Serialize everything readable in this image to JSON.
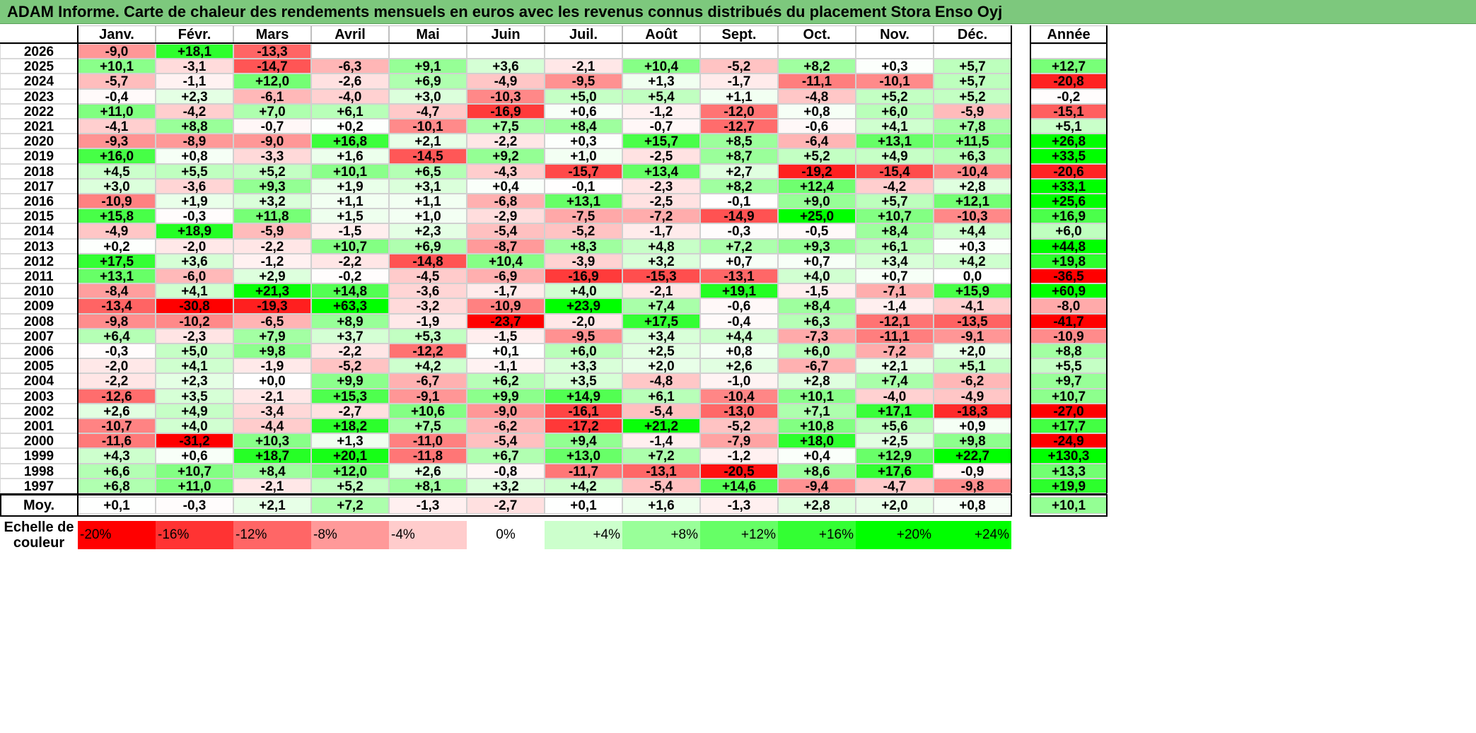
{
  "title": "ADAM Informe. Carte de chaleur des rendements mensuels en euros avec les revenus connus distribués du placement Stora Enso Oyj",
  "colors": {
    "title_bg": "#7dc87d",
    "neg_strong": "#ff0000",
    "pos_strong": "#00ff00",
    "neutral": "#ffffff"
  },
  "chart_data": {
    "type": "heatmap",
    "months": [
      "Janv.",
      "Févr.",
      "Mars",
      "Avril",
      "Mai",
      "Juin",
      "Juil.",
      "Août",
      "Sept.",
      "Oct.",
      "Nov.",
      "Déc."
    ],
    "year_header": "Année",
    "avg_label": "Moy.",
    "rows": [
      {
        "year": "2026",
        "values": [
          "-9,0",
          "+18,1",
          "-13,3",
          "",
          "",
          "",
          "",
          "",
          "",
          "",
          "",
          ""
        ],
        "annual": ""
      },
      {
        "year": "2025",
        "values": [
          "+10,1",
          "-3,1",
          "-14,7",
          "-6,3",
          "+9,1",
          "+3,6",
          "-2,1",
          "+10,4",
          "-5,2",
          "+8,2",
          "+0,3",
          "+5,7"
        ],
        "annual": "+12,7"
      },
      {
        "year": "2024",
        "values": [
          "-5,7",
          "-1,1",
          "+12,0",
          "-2,6",
          "+6,9",
          "-4,9",
          "-9,5",
          "+1,3",
          "-1,7",
          "-11,1",
          "-10,1",
          "+5,7"
        ],
        "annual": "-20,8"
      },
      {
        "year": "2023",
        "values": [
          "-0,4",
          "+2,3",
          "-6,1",
          "-4,0",
          "+3,0",
          "-10,3",
          "+5,0",
          "+5,4",
          "+1,1",
          "-4,8",
          "+5,2",
          "+5,2"
        ],
        "annual": "-0,2"
      },
      {
        "year": "2022",
        "values": [
          "+11,0",
          "-4,2",
          "+7,0",
          "+6,1",
          "-4,7",
          "-16,9",
          "+0,6",
          "-1,2",
          "-12,0",
          "+0,8",
          "+6,0",
          "-5,9"
        ],
        "annual": "-15,1"
      },
      {
        "year": "2021",
        "values": [
          "-4,1",
          "+8,8",
          "-0,7",
          "+0,2",
          "-10,1",
          "+7,5",
          "+8,4",
          "-0,7",
          "-12,7",
          "-0,6",
          "+4,1",
          "+7,8"
        ],
        "annual": "+5,1"
      },
      {
        "year": "2020",
        "values": [
          "-9,3",
          "-8,9",
          "-9,0",
          "+16,8",
          "+2,1",
          "-2,2",
          "+0,3",
          "+15,7",
          "+8,5",
          "-6,4",
          "+13,1",
          "+11,5"
        ],
        "annual": "+26,8"
      },
      {
        "year": "2019",
        "values": [
          "+16,0",
          "+0,8",
          "-3,3",
          "+1,6",
          "-14,5",
          "+9,2",
          "+1,0",
          "-2,5",
          "+8,7",
          "+5,2",
          "+4,9",
          "+6,3"
        ],
        "annual": "+33,5"
      },
      {
        "year": "2018",
        "values": [
          "+4,5",
          "+5,5",
          "+5,2",
          "+10,1",
          "+6,5",
          "-4,3",
          "-15,7",
          "+13,4",
          "+2,7",
          "-19,2",
          "-15,4",
          "-10,4"
        ],
        "annual": "-20,6"
      },
      {
        "year": "2017",
        "values": [
          "+3,0",
          "-3,6",
          "+9,3",
          "+1,9",
          "+3,1",
          "+0,4",
          "-0,1",
          "-2,3",
          "+8,2",
          "+12,4",
          "-4,2",
          "+2,8"
        ],
        "annual": "+33,1"
      },
      {
        "year": "2016",
        "values": [
          "-10,9",
          "+1,9",
          "+3,2",
          "+1,1",
          "+1,1",
          "-6,8",
          "+13,1",
          "-2,5",
          "-0,1",
          "+9,0",
          "+5,7",
          "+12,1"
        ],
        "annual": "+25,6"
      },
      {
        "year": "2015",
        "values": [
          "+15,8",
          "-0,3",
          "+11,8",
          "+1,5",
          "+1,0",
          "-2,9",
          "-7,5",
          "-7,2",
          "-14,9",
          "+25,0",
          "+10,7",
          "-10,3"
        ],
        "annual": "+16,9"
      },
      {
        "year": "2014",
        "values": [
          "-4,9",
          "+18,9",
          "-5,9",
          "-1,5",
          "+2,3",
          "-5,4",
          "-5,2",
          "-1,7",
          "-0,3",
          "-0,5",
          "+8,4",
          "+4,4"
        ],
        "annual": "+6,0"
      },
      {
        "year": "2013",
        "values": [
          "+0,2",
          "-2,0",
          "-2,2",
          "+10,7",
          "+6,9",
          "-8,7",
          "+8,3",
          "+4,8",
          "+7,2",
          "+9,3",
          "+6,1",
          "+0,3"
        ],
        "annual": "+44,8"
      },
      {
        "year": "2012",
        "values": [
          "+17,5",
          "+3,6",
          "-1,2",
          "-2,2",
          "-14,8",
          "+10,4",
          "-3,9",
          "+3,2",
          "+0,7",
          "+0,7",
          "+3,4",
          "+4,2"
        ],
        "annual": "+19,8"
      },
      {
        "year": "2011",
        "values": [
          "+13,1",
          "-6,0",
          "+2,9",
          "-0,2",
          "-4,5",
          "-6,9",
          "-16,9",
          "-15,3",
          "-13,1",
          "+4,0",
          "+0,7",
          "0,0"
        ],
        "annual": "-36,5"
      },
      {
        "year": "2010",
        "values": [
          "-8,4",
          "+4,1",
          "+21,3",
          "+14,8",
          "-3,6",
          "-1,7",
          "+4,0",
          "-2,1",
          "+19,1",
          "-1,5",
          "-7,1",
          "+15,9"
        ],
        "annual": "+60,9"
      },
      {
        "year": "2009",
        "values": [
          "-13,4",
          "-30,8",
          "-19,3",
          "+63,3",
          "-3,2",
          "-10,9",
          "+23,9",
          "+7,4",
          "-0,6",
          "+8,4",
          "-1,4",
          "-4,1"
        ],
        "annual": "-8,0"
      },
      {
        "year": "2008",
        "values": [
          "-9,8",
          "-10,2",
          "-6,5",
          "+8,9",
          "-1,9",
          "-23,7",
          "-2,0",
          "+17,5",
          "-0,4",
          "+6,3",
          "-12,1",
          "-13,5"
        ],
        "annual": "-41,7"
      },
      {
        "year": "2007",
        "values": [
          "+6,4",
          "-2,3",
          "+7,9",
          "+3,7",
          "+5,3",
          "-1,5",
          "-9,5",
          "+3,4",
          "+4,4",
          "-7,3",
          "-11,1",
          "-9,1"
        ],
        "annual": "-10,9"
      },
      {
        "year": "2006",
        "values": [
          "-0,3",
          "+5,0",
          "+9,8",
          "-2,2",
          "-12,2",
          "+0,1",
          "+6,0",
          "+2,5",
          "+0,8",
          "+6,0",
          "-7,2",
          "+2,0"
        ],
        "annual": "+8,8"
      },
      {
        "year": "2005",
        "values": [
          "-2,0",
          "+4,1",
          "-1,9",
          "-5,2",
          "+4,2",
          "-1,1",
          "+3,3",
          "+2,0",
          "+2,6",
          "-6,7",
          "+2,1",
          "+5,1"
        ],
        "annual": "+5,5"
      },
      {
        "year": "2004",
        "values": [
          "-2,2",
          "+2,3",
          "+0,0",
          "+9,9",
          "-6,7",
          "+6,2",
          "+3,5",
          "-4,8",
          "-1,0",
          "+2,8",
          "+7,4",
          "-6,2"
        ],
        "annual": "+9,7"
      },
      {
        "year": "2003",
        "values": [
          "-12,6",
          "+3,5",
          "-2,1",
          "+15,3",
          "-9,1",
          "+9,9",
          "+14,9",
          "+6,1",
          "-10,4",
          "+10,1",
          "-4,0",
          "-4,9"
        ],
        "annual": "+10,7"
      },
      {
        "year": "2002",
        "values": [
          "+2,6",
          "+4,9",
          "-3,4",
          "-2,7",
          "+10,6",
          "-9,0",
          "-16,1",
          "-5,4",
          "-13,0",
          "+7,1",
          "+17,1",
          "-18,3"
        ],
        "annual": "-27,0"
      },
      {
        "year": "2001",
        "values": [
          "-10,7",
          "+4,0",
          "-4,4",
          "+18,2",
          "+7,5",
          "-6,2",
          "-17,2",
          "+21,2",
          "-5,2",
          "+10,8",
          "+5,6",
          "+0,9"
        ],
        "annual": "+17,7"
      },
      {
        "year": "2000",
        "values": [
          "-11,6",
          "-31,2",
          "+10,3",
          "+1,3",
          "-11,0",
          "-5,4",
          "+9,4",
          "-1,4",
          "-7,9",
          "+18,0",
          "+2,5",
          "+9,8"
        ],
        "annual": "-24,9"
      },
      {
        "year": "1999",
        "values": [
          "+4,3",
          "+0,6",
          "+18,7",
          "+20,1",
          "-11,8",
          "+6,7",
          "+13,0",
          "+7,2",
          "-1,2",
          "+0,4",
          "+12,9",
          "+22,7"
        ],
        "annual": "+130,3"
      },
      {
        "year": "1998",
        "values": [
          "+6,6",
          "+10,7",
          "+8,4",
          "+12,0",
          "+2,6",
          "-0,8",
          "-11,7",
          "-13,1",
          "-20,5",
          "+8,6",
          "+17,6",
          "-0,9"
        ],
        "annual": "+13,3"
      },
      {
        "year": "1997",
        "values": [
          "+6,8",
          "+11,0",
          "-2,1",
          "+5,2",
          "+8,1",
          "+3,2",
          "+4,2",
          "-5,4",
          "+14,6",
          "-9,4",
          "-4,7",
          "-9,8"
        ],
        "annual": "+19,9"
      }
    ],
    "averages": {
      "values": [
        "+0,1",
        "-0,3",
        "+2,1",
        "+7,2",
        "-1,3",
        "-2,7",
        "+0,1",
        "+1,6",
        "-1,3",
        "+2,8",
        "+2,0",
        "+0,8"
      ],
      "annual": "+10,1"
    },
    "scale": {
      "label_line1": "Echelle de",
      "label_line2": "couleur",
      "items": [
        "-20%",
        "-16%",
        "-12%",
        "-8%",
        "-4%",
        "0%",
        "+4%",
        "+8%",
        "+12%",
        "+16%",
        "+20%",
        "+24%"
      ],
      "levels": [
        -20,
        -16,
        -12,
        -8,
        -4,
        0,
        4,
        8,
        12,
        16,
        20,
        24
      ]
    }
  }
}
